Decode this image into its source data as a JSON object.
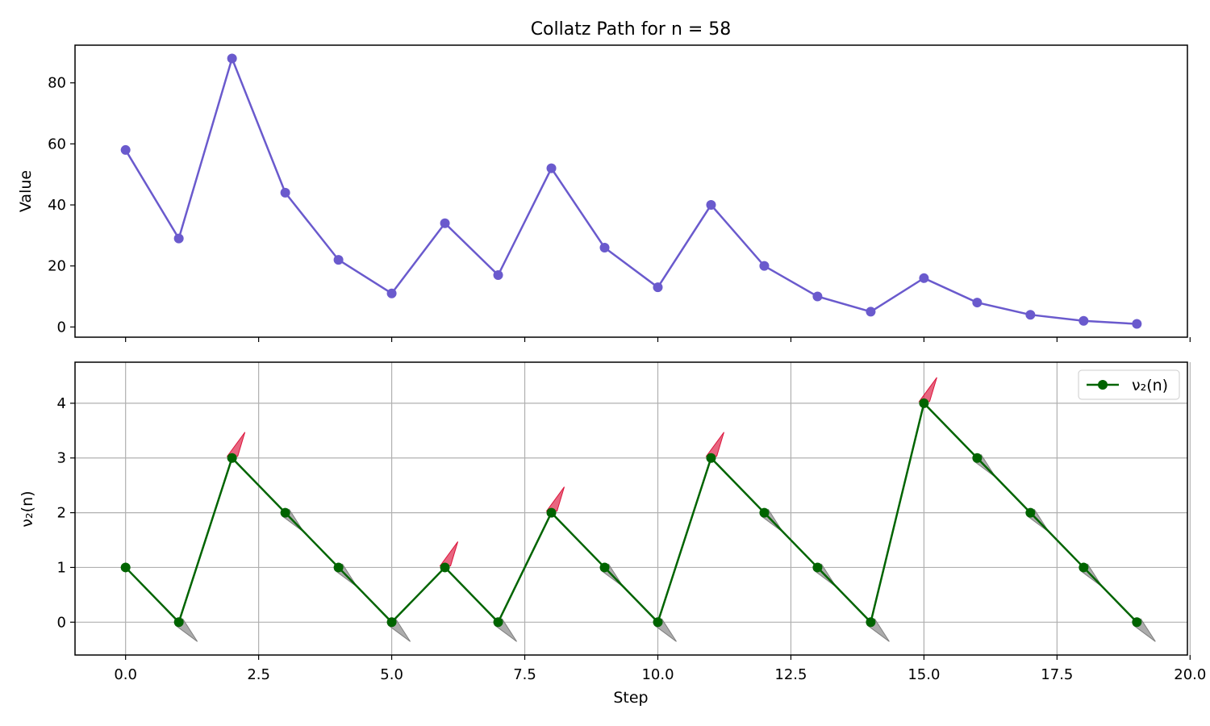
{
  "figure_title": "Collatz Path for n = 58",
  "colors": {
    "value_series": "#6a5acd",
    "v2_series": "#006400",
    "arrow_up": "#dc143c",
    "arrow_down": "#808080",
    "grid": "#b0b0b0"
  },
  "chart_data": [
    {
      "type": "line",
      "title": "Collatz Path for n = 58",
      "xlabel": "",
      "ylabel": "Value",
      "xlim": [
        -0.95,
        19.95
      ],
      "ylim": [
        -3.35,
        92.35
      ],
      "xticks": [
        0.0,
        2.5,
        5.0,
        7.5,
        10.0,
        12.5,
        15.0,
        17.5,
        20.0
      ],
      "yticks": [
        0,
        20,
        40,
        60,
        80
      ],
      "ytick_labels": [
        "0",
        "20",
        "40",
        "60",
        "80"
      ],
      "grid": false,
      "series": [
        {
          "x": [
            0,
            1,
            2,
            3,
            4,
            5,
            6,
            7,
            8,
            9,
            10,
            11,
            12,
            13,
            14,
            15,
            16,
            17,
            18,
            19
          ],
          "values": [
            58,
            29,
            88,
            44,
            22,
            11,
            34,
            17,
            52,
            26,
            13,
            40,
            20,
            10,
            5,
            16,
            8,
            4,
            2,
            1
          ]
        }
      ]
    },
    {
      "type": "line",
      "xlabel": "Step",
      "ylabel": "ν₂(n)",
      "xlim": [
        -0.95,
        19.95
      ],
      "ylim": [
        -0.6,
        4.75
      ],
      "xticks": [
        0.0,
        2.5,
        5.0,
        7.5,
        10.0,
        12.5,
        15.0,
        17.5,
        20.0
      ],
      "xtick_labels": [
        "0.0",
        "2.5",
        "5.0",
        "7.5",
        "10.0",
        "12.5",
        "15.0",
        "17.5",
        "20.0"
      ],
      "yticks": [
        0,
        1,
        2,
        3,
        4
      ],
      "ytick_labels": [
        "0",
        "1",
        "2",
        "3",
        "4"
      ],
      "grid": true,
      "legend": {
        "position": "upper right",
        "entries": [
          "ν₂(n)"
        ]
      },
      "series": [
        {
          "name": "ν₂(n)",
          "x": [
            0,
            1,
            2,
            3,
            4,
            5,
            6,
            7,
            8,
            9,
            10,
            11,
            12,
            13,
            14,
            15,
            16,
            17,
            18,
            19
          ],
          "values": [
            1,
            0,
            3,
            2,
            1,
            0,
            1,
            0,
            2,
            1,
            0,
            3,
            2,
            1,
            0,
            4,
            3,
            2,
            1,
            0
          ]
        }
      ],
      "arrow_direction": [
        "",
        "down",
        "up",
        "down",
        "down",
        "down",
        "up",
        "down",
        "up",
        "down",
        "down",
        "up",
        "down",
        "down",
        "down",
        "up",
        "down",
        "down",
        "down",
        "down"
      ]
    }
  ]
}
